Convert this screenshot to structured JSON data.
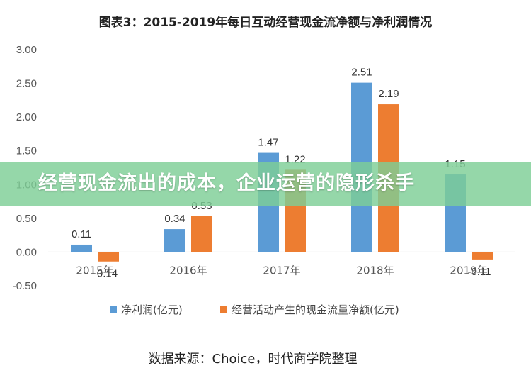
{
  "banner": {
    "text": "经营现金流出的成本，企业运营的隐形杀手"
  },
  "chart_data": {
    "type": "bar",
    "title": "图表3：2015-2019年每日互动经营现金流净额与净利润情况",
    "categories": [
      "2015年",
      "2016年",
      "2017年",
      "2018年",
      "2019年"
    ],
    "series": [
      {
        "name": "净利润(亿元)",
        "color": "#5B9BD5",
        "values": [
          0.11,
          0.34,
          1.47,
          2.51,
          1.15
        ]
      },
      {
        "name": "经营活动产生的现金流量净额(亿元)",
        "color": "#ED7D31",
        "values": [
          -0.14,
          0.53,
          1.22,
          2.19,
          -0.11
        ]
      }
    ],
    "data_labels": [
      [
        "0.11",
        "0.34",
        "1.47",
        "2.51",
        "1.15"
      ],
      [
        "-0.14",
        "0.53",
        "1.22",
        "2.19",
        "-0.11"
      ]
    ],
    "y_ticks": [
      "3.00",
      "2.50",
      "2.00",
      "1.50",
      "1.00",
      "0.50",
      "0.00",
      "-0.50"
    ],
    "ylim": [
      -0.5,
      3.0
    ],
    "grid": false,
    "legend_position": "bottom",
    "xlabel": "",
    "ylabel": ""
  },
  "footer": {
    "source": "数据来源：Choice，时代商学院整理"
  }
}
